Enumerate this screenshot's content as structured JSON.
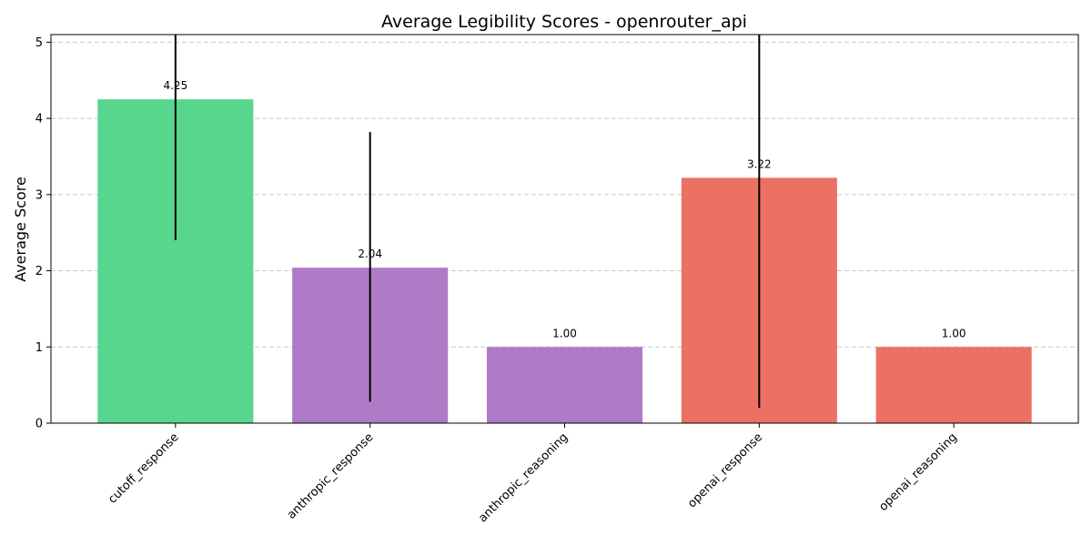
{
  "chart_data": {
    "type": "bar",
    "title": "Average Legibility Scores - openrouter_api",
    "xlabel": "",
    "ylabel": "Average Score",
    "categories": [
      "cutoff_response",
      "anthropic_response",
      "anthropic_reasoning",
      "openai_response",
      "openai_reasoning"
    ],
    "values": [
      4.25,
      2.04,
      1.0,
      3.22,
      1.0
    ],
    "value_labels": [
      "4.25",
      "2.04",
      "1.00",
      "3.22",
      "1.00"
    ],
    "error_bars": [
      {
        "low": 2.4,
        "high": 5.1
      },
      {
        "low": 0.28,
        "high": 3.82
      },
      {
        "low": 1.0,
        "high": 1.0
      },
      {
        "low": 0.2,
        "high": 5.1
      },
      {
        "low": 1.0,
        "high": 1.0
      }
    ],
    "colors": [
      "#58d68d",
      "#af7ac5",
      "#af7ac5",
      "#ec7063",
      "#ec7063"
    ],
    "ylim": [
      0,
      5.1
    ],
    "yticks": [
      0,
      1,
      2,
      3,
      4,
      5
    ],
    "grid": "y-dashed",
    "legend": "none"
  }
}
